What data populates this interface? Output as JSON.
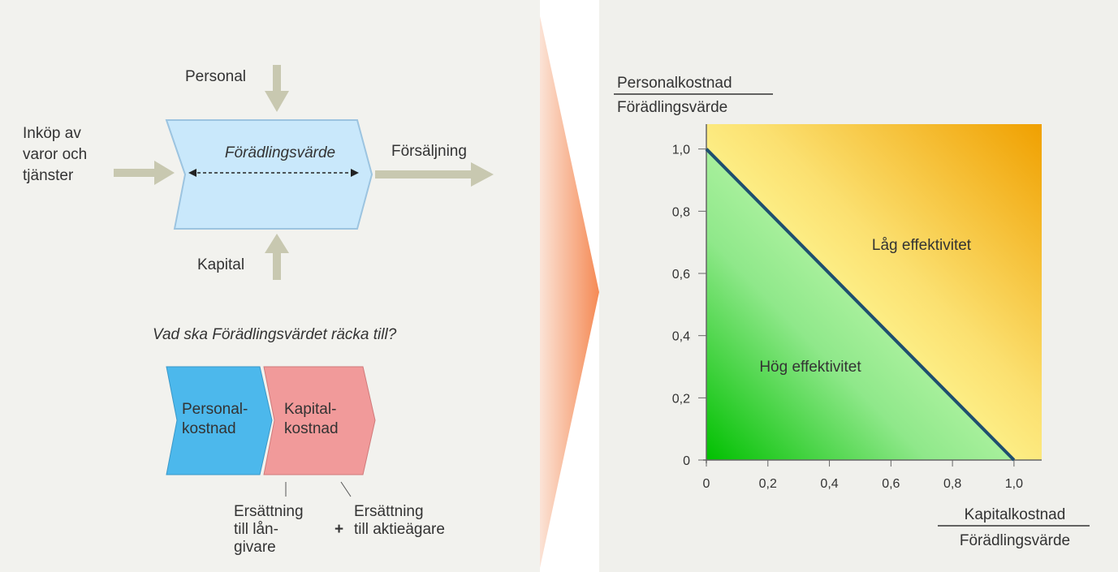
{
  "flow": {
    "input_top": "Personal",
    "input_left": [
      "Inköp av",
      "varor och",
      "tjänster"
    ],
    "center": "Förädlingsvärde",
    "output": "Försäljning",
    "input_bottom": "Kapital"
  },
  "question": "Vad ska Förädlingsvärdet räcka till?",
  "split": {
    "left": [
      "Personal-",
      "kostnad"
    ],
    "right": [
      "Kapital-",
      "kostnad"
    ],
    "note_left": [
      "Ersättning",
      "till lån-",
      "givare"
    ],
    "plus": "+",
    "note_right": [
      "Ersättning",
      "till aktieägare"
    ]
  },
  "chart_data": {
    "type": "line",
    "ylabel": [
      "Personalkostnad",
      "Förädlingsvärde"
    ],
    "xlabel": [
      "Kapitalkostnad",
      "Förädlingsvärde"
    ],
    "x": [
      0,
      1
    ],
    "values": [
      1,
      0
    ],
    "color": "#1f4f6f",
    "xlim": [
      0,
      1.09
    ],
    "ylim": [
      0,
      1.08
    ],
    "xticks": [
      0,
      {
        "value": 0.2,
        "label": "0,2"
      },
      {
        "value": 0.4,
        "label": "0,4"
      },
      {
        "value": 0.6,
        "label": "0,6"
      },
      {
        "value": 0.8,
        "label": "0,8"
      },
      {
        "value": 1,
        "label": "1,0"
      }
    ],
    "yticks": [
      0,
      {
        "value": 0.2,
        "label": "0,2"
      },
      {
        "value": 0.4,
        "label": "0,4"
      },
      {
        "value": 0.6,
        "label": "0,6"
      },
      {
        "value": 0.8,
        "label": "0,8"
      },
      {
        "value": 1,
        "label": "1,0"
      }
    ],
    "annotations": [
      "Låg effektivitet",
      "Hög effektivitet"
    ]
  }
}
